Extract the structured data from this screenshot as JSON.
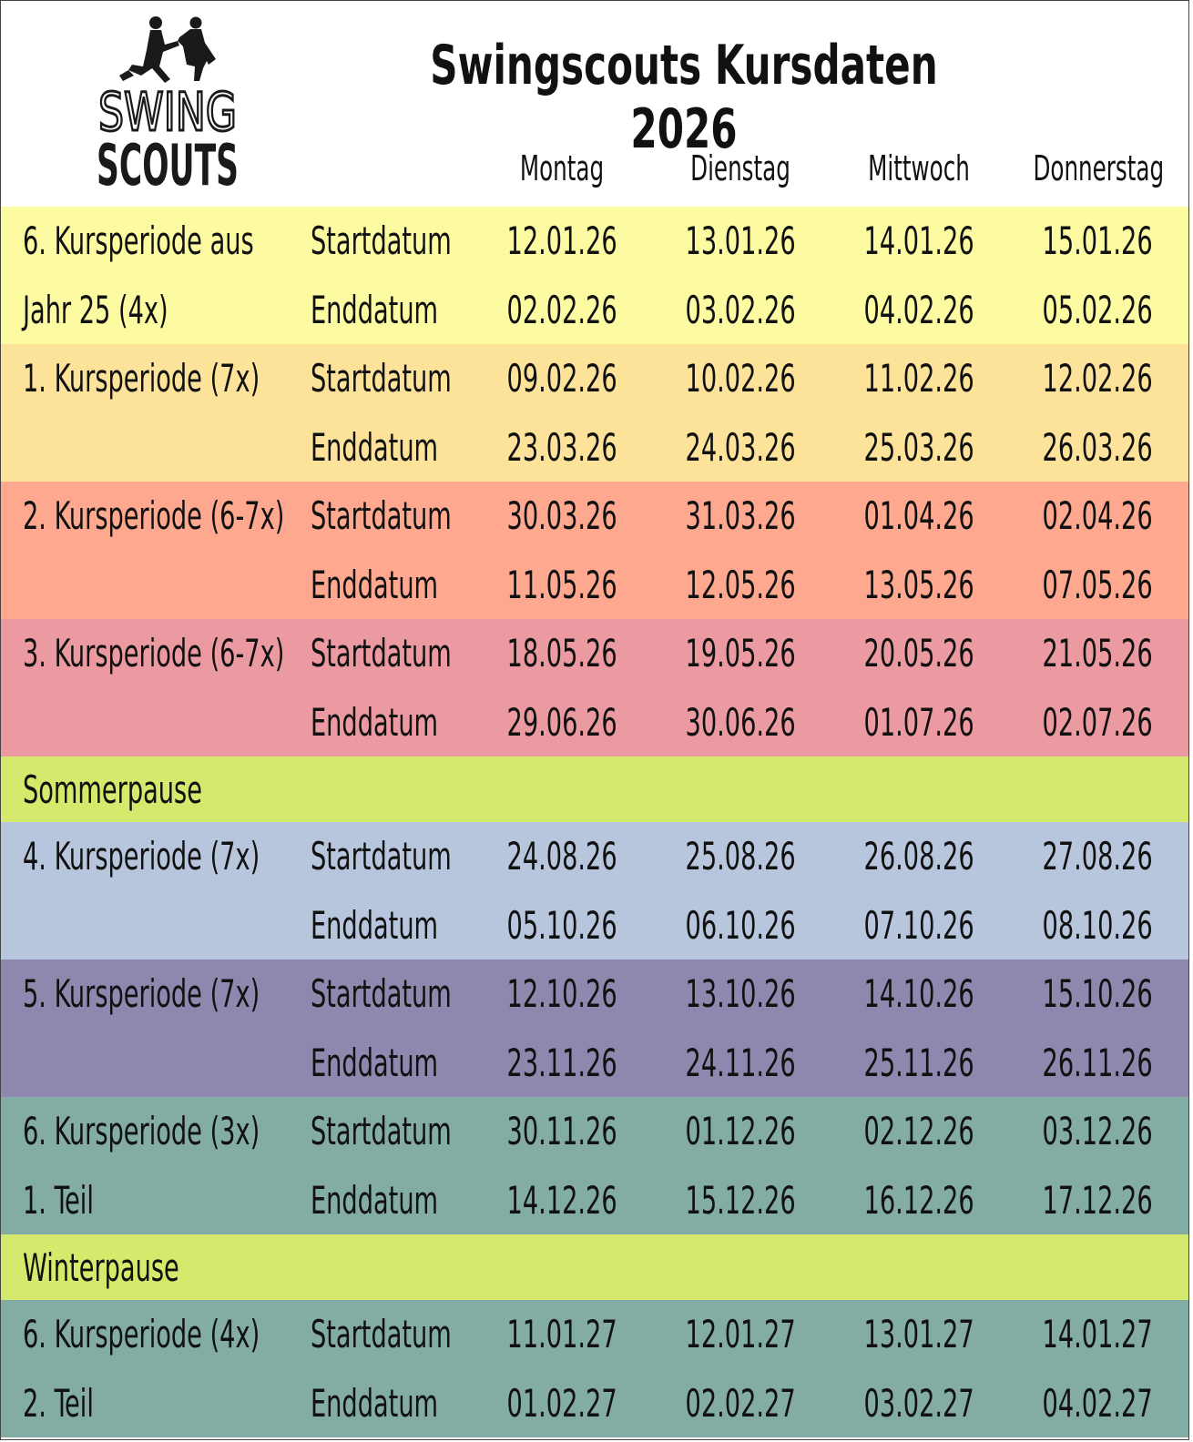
{
  "title": "Swingscouts Kursdaten 2026",
  "logo": {
    "line1": "SWING",
    "line2": "SCOUTS"
  },
  "days": [
    "Montag",
    "Dienstag",
    "Mittwoch",
    "Donnerstag"
  ],
  "colors": {
    "yellow": "#fdfba2",
    "orange": "#fde29a",
    "salmon": "#fda88f",
    "pink": "#ea9aa0",
    "lime": "#d5e96c",
    "lightblue": "#b7c6dc",
    "purple": "#8f87ad",
    "teal": "#82aca4"
  },
  "rows": [
    {
      "period": "6. Kursperiode aus",
      "type": "Startdatum",
      "dates": [
        "12.01.26",
        "13.01.26",
        "14.01.26",
        "15.01.26"
      ],
      "color": "#fdfba2"
    },
    {
      "period": "Jahr 25 (4x)",
      "type": "Enddatum",
      "dates": [
        "02.02.26",
        "03.02.26",
        "04.02.26",
        "05.02.26"
      ],
      "color": "#fdfba2"
    },
    {
      "period": "1. Kursperiode (7x)",
      "type": "Startdatum",
      "dates": [
        "09.02.26",
        "10.02.26",
        "11.02.26",
        "12.02.26"
      ],
      "color": "#fde29a"
    },
    {
      "period": "",
      "type": "Enddatum",
      "dates": [
        "23.03.26",
        "24.03.26",
        "25.03.26",
        "26.03.26"
      ],
      "color": "#fde29a"
    },
    {
      "period": "2. Kursperiode (6-7x)",
      "type": "Startdatum",
      "dates": [
        "30.03.26",
        "31.03.26",
        "01.04.26",
        "02.04.26"
      ],
      "color": "#fda88f"
    },
    {
      "period": "",
      "type": "Enddatum",
      "dates": [
        "11.05.26",
        "12.05.26",
        "13.05.26",
        "07.05.26"
      ],
      "color": "#fda88f"
    },
    {
      "period": "3. Kursperiode (6-7x)",
      "type": "Startdatum",
      "dates": [
        "18.05.26",
        "19.05.26",
        "20.05.26",
        "21.05.26"
      ],
      "color": "#ea9aa0"
    },
    {
      "period": "",
      "type": "Enddatum",
      "dates": [
        "29.06.26",
        "30.06.26",
        "01.07.26",
        "02.07.26"
      ],
      "color": "#ea9aa0"
    },
    {
      "period": "Sommerpause",
      "type": "",
      "dates": [
        "",
        "",
        "",
        ""
      ],
      "color": "#d5e96c",
      "pause": true
    },
    {
      "period": "4. Kursperiode (7x)",
      "type": "Startdatum",
      "dates": [
        "24.08.26",
        "25.08.26",
        "26.08.26",
        "27.08.26"
      ],
      "color": "#b7c6dc"
    },
    {
      "period": "",
      "type": "Enddatum",
      "dates": [
        "05.10.26",
        "06.10.26",
        "07.10.26",
        "08.10.26"
      ],
      "color": "#b7c6dc"
    },
    {
      "period": "5. Kursperiode (7x)",
      "type": "Startdatum",
      "dates": [
        "12.10.26",
        "13.10.26",
        "14.10.26",
        "15.10.26"
      ],
      "color": "#8f87ad"
    },
    {
      "period": "",
      "type": "Enddatum",
      "dates": [
        "23.11.26",
        "24.11.26",
        "25.11.26",
        "26.11.26"
      ],
      "color": "#8f87ad"
    },
    {
      "period": "6. Kursperiode (3x)",
      "type": "Startdatum",
      "dates": [
        "30.11.26",
        "01.12.26",
        "02.12.26",
        "03.12.26"
      ],
      "color": "#82aca4"
    },
    {
      "period": "1. Teil",
      "type": "Enddatum",
      "dates": [
        "14.12.26",
        "15.12.26",
        "16.12.26",
        "17.12.26"
      ],
      "color": "#82aca4"
    },
    {
      "period": "Winterpause",
      "type": "",
      "dates": [
        "",
        "",
        "",
        ""
      ],
      "color": "#d5e96c",
      "pause": true
    },
    {
      "period": "6. Kursperiode (4x)",
      "type": "Startdatum",
      "dates": [
        "11.01.27",
        "12.01.27",
        "13.01.27",
        "14.01.27"
      ],
      "color": "#82aca4"
    },
    {
      "period": "2. Teil",
      "type": "Enddatum",
      "dates": [
        "01.02.27",
        "02.02.27",
        "03.02.27",
        "04.02.27"
      ],
      "color": "#82aca4"
    }
  ]
}
